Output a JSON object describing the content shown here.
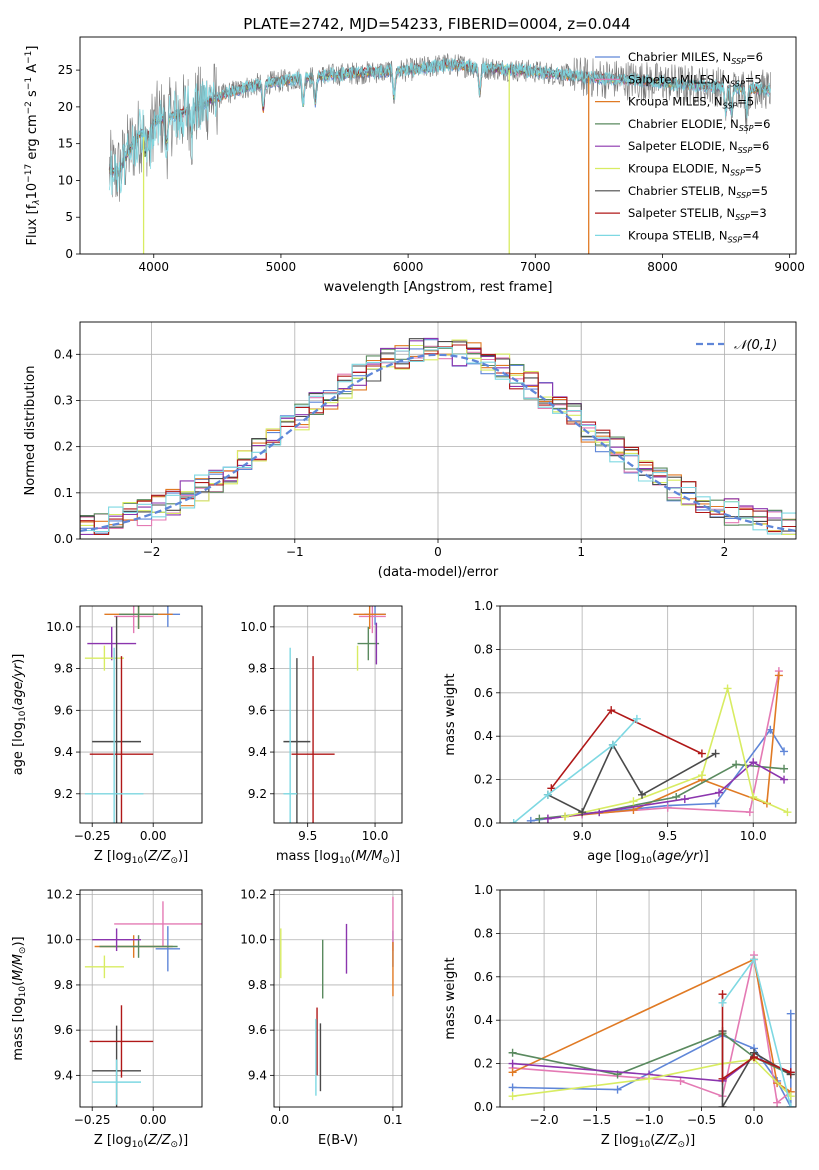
{
  "title": "PLATE=2742, MJD=54233, FIBERID=0004, z=0.044",
  "colors": {
    "Chabrier MILES": "#5f86d8",
    "Salpeter MILES": "#e47ab4",
    "Kroupa MILES": "#e07a24",
    "Chabrier ELODIE": "#5a8a5f",
    "Salpeter ELODIE": "#8b35ae",
    "Kroupa ELODIE": "#d8ec62",
    "Chabrier STELIB": "#4a4a4a",
    "Salpeter STELIB": "#b01818",
    "Kroupa STELIB": "#7ed8e2",
    "normal": "#5f86d8"
  },
  "legend_models": [
    {
      "model": "Chabrier MILES",
      "nssp": "6"
    },
    {
      "model": "Salpeter MILES",
      "nssp": "5"
    },
    {
      "model": "Kroupa MILES",
      "nssp": "5"
    },
    {
      "model": "Chabrier ELODIE",
      "nssp": "6"
    },
    {
      "model": "Salpeter ELODIE",
      "nssp": "6"
    },
    {
      "model": "Kroupa ELODIE",
      "nssp": "5"
    },
    {
      "model": "Chabrier STELIB",
      "nssp": "5"
    },
    {
      "model": "Salpeter STELIB",
      "nssp": "3"
    },
    {
      "model": "Kroupa STELIB",
      "nssp": "4"
    }
  ],
  "chart_data": [
    {
      "id": "spectrum",
      "type": "line",
      "xlabel": "wavelength [Angstrom, rest frame]",
      "ylabel": "Flux [f_λ10^-17 erg cm^-2 s^-1 A^-1]",
      "xlim": [
        3420,
        9050
      ],
      "ylim": [
        0,
        29.5
      ],
      "xticks": [
        4000,
        5000,
        6000,
        7000,
        8000,
        9000
      ],
      "yticks": [
        0,
        5,
        10,
        15,
        20,
        25
      ],
      "x_range": [
        3650,
        8850
      ],
      "continuum": [
        [
          3650,
          11.5
        ],
        [
          3720,
          11
        ],
        [
          3800,
          14
        ],
        [
          3900,
          16.5
        ],
        [
          4000,
          18
        ],
        [
          4200,
          19
        ],
        [
          4400,
          20.5
        ],
        [
          4600,
          22
        ],
        [
          4800,
          23
        ],
        [
          5000,
          23.5
        ],
        [
          5200,
          24
        ],
        [
          5500,
          24.5
        ],
        [
          6000,
          25
        ],
        [
          6300,
          25.8
        ],
        [
          6600,
          25.3
        ],
        [
          7000,
          24.8
        ],
        [
          7400,
          24
        ],
        [
          7800,
          23.6
        ],
        [
          8200,
          23
        ],
        [
          8600,
          22.6
        ],
        [
          8850,
          22.3
        ]
      ],
      "absorption_lines": [
        3934,
        3969,
        4101,
        4300,
        4861,
        5175,
        5270,
        5890,
        6563,
        8498,
        8542,
        8662
      ],
      "spikes": [
        {
          "x": 3920,
          "model": "Kroupa ELODIE"
        },
        {
          "x": 6795,
          "model": "Kroupa ELODIE"
        },
        {
          "x": 7420,
          "model": "Kroupa MILES"
        }
      ]
    },
    {
      "id": "residuals",
      "type": "histogram",
      "xlabel": "(data-model)/error",
      "ylabel": "Normed distribution",
      "xlim": [
        -2.5,
        2.5
      ],
      "ylim": [
        0,
        0.47
      ],
      "xticks": [
        -2,
        -1,
        0,
        1,
        2
      ],
      "yticks": [
        0,
        0.1,
        0.2,
        0.3,
        0.4
      ],
      "bins": 50,
      "legend": "𝒩(0,1)"
    },
    {
      "id": "age-vs-Z",
      "type": "errorbar",
      "xlabel": "Z [log10(Z/Z⊙)]",
      "ylabel": "age [log10(age/yr)]",
      "xlim": [
        -0.3,
        0.2
      ],
      "ylim": [
        9.06,
        10.1
      ],
      "xticks": [
        -0.25,
        0.0
      ],
      "yticks": [
        9.2,
        9.4,
        9.6,
        9.8,
        10.0
      ],
      "points": [
        {
          "model": "Chabrier MILES",
          "x": 0.06,
          "xerr": 0.05,
          "y": 10.06,
          "yerr": 0.06
        },
        {
          "model": "Salpeter MILES",
          "x": -0.08,
          "xerr": 0.08,
          "y": 10.05,
          "yerr": 0.08
        },
        {
          "model": "Kroupa MILES",
          "x": -0.06,
          "xerr": 0.14,
          "y": 10.06,
          "yerr": 0.07
        },
        {
          "model": "Chabrier ELODIE",
          "x": -0.06,
          "xerr": 0.08,
          "y": 10.06,
          "yerr": 0.07
        },
        {
          "model": "Salpeter ELODIE",
          "x": -0.17,
          "xerr": 0.1,
          "y": 9.92,
          "yerr": 0.08
        },
        {
          "model": "Kroupa ELODIE",
          "x": -0.2,
          "xerr": 0.08,
          "y": 9.85,
          "yerr": 0.06
        },
        {
          "model": "Chabrier STELIB",
          "x": -0.15,
          "xerr": 0.1,
          "y": 9.45,
          "yerr": 0.6
        },
        {
          "model": "Salpeter STELIB",
          "x": -0.13,
          "xerr": 0.13,
          "y": 9.39,
          "yerr": 0.47
        },
        {
          "model": "Kroupa STELIB",
          "x": -0.16,
          "xerr": 0.12,
          "y": 9.2,
          "yerr": 0.7
        }
      ]
    },
    {
      "id": "age-vs-mass",
      "type": "errorbar",
      "xlabel": "mass [log10(M/M⊙)]",
      "ylabel": "",
      "xlim": [
        9.25,
        10.2
      ],
      "ylim": [
        9.06,
        10.1
      ],
      "xticks": [
        9.5,
        10.0
      ],
      "yticks": [
        9.2,
        9.4,
        9.6,
        9.8,
        10.0
      ],
      "points": [
        {
          "model": "Chabrier MILES",
          "x": 10.0,
          "xerr": 0.08,
          "y": 10.06,
          "yerr": 0.05
        },
        {
          "model": "Salpeter MILES",
          "x": 9.98,
          "xerr": 0.1,
          "y": 10.05,
          "yerr": 0.08
        },
        {
          "model": "Kroupa MILES",
          "x": 9.96,
          "xerr": 0.12,
          "y": 10.06,
          "yerr": 0.07
        },
        {
          "model": "Chabrier ELODIE",
          "x": 9.95,
          "xerr": 0.08,
          "y": 9.92,
          "yerr": 0.08
        },
        {
          "model": "Salpeter ELODIE",
          "x": 10.01,
          "xerr": 0.0,
          "y": 9.92,
          "yerr": 0.1
        },
        {
          "model": "Kroupa ELODIE",
          "x": 9.87,
          "xerr": 0.0,
          "y": 9.85,
          "yerr": 0.06
        },
        {
          "model": "Chabrier STELIB",
          "x": 9.42,
          "xerr": 0.1,
          "y": 9.45,
          "yerr": 0.4
        },
        {
          "model": "Salpeter STELIB",
          "x": 9.54,
          "xerr": 0.16,
          "y": 9.39,
          "yerr": 0.47
        },
        {
          "model": "Kroupa STELIB",
          "x": 9.37,
          "xerr": 0.05,
          "y": 9.2,
          "yerr": 0.7
        }
      ]
    },
    {
      "id": "mass-weight-vs-age",
      "type": "line",
      "xlabel": "age [log10(age/yr)]",
      "ylabel": "mass weight",
      "xlim": [
        8.52,
        10.25
      ],
      "ylim": [
        0,
        1.0
      ],
      "xticks": [
        9.0,
        9.5,
        10.0
      ],
      "yticks": [
        0.0,
        0.2,
        0.4,
        0.6,
        0.8,
        1.0
      ],
      "series": [
        {
          "model": "Chabrier MILES",
          "x": [
            8.7,
            9.0,
            9.5,
            9.78,
            10.1,
            10.18
          ],
          "y": [
            0.01,
            0.04,
            0.08,
            0.09,
            0.43,
            0.33
          ]
        },
        {
          "model": "Salpeter MILES",
          "x": [
            8.8,
            9.0,
            9.5,
            9.98,
            10.15
          ],
          "y": [
            0.02,
            0.04,
            0.07,
            0.05,
            0.7
          ]
        },
        {
          "model": "Kroupa MILES",
          "x": [
            8.9,
            9.3,
            9.7,
            10.08,
            10.15
          ],
          "y": [
            0.03,
            0.06,
            0.2,
            0.09,
            0.68
          ]
        },
        {
          "model": "Chabrier ELODIE",
          "x": [
            8.75,
            9.1,
            9.55,
            9.9,
            10.18
          ],
          "y": [
            0.02,
            0.05,
            0.12,
            0.27,
            0.25
          ]
        },
        {
          "model": "Salpeter ELODIE",
          "x": [
            8.8,
            9.1,
            9.6,
            9.8,
            10.0,
            10.18
          ],
          "y": [
            0.02,
            0.05,
            0.11,
            0.14,
            0.28,
            0.2
          ]
        },
        {
          "model": "Kroupa ELODIE",
          "x": [
            8.9,
            9.3,
            9.7,
            9.85,
            10.0,
            10.2
          ],
          "y": [
            0.03,
            0.1,
            0.22,
            0.62,
            0.12,
            0.05
          ]
        },
        {
          "model": "Chabrier STELIB",
          "x": [
            8.8,
            9.0,
            9.18,
            9.35,
            9.78
          ],
          "y": [
            0.13,
            0.05,
            0.36,
            0.13,
            0.32
          ]
        },
        {
          "model": "Salpeter STELIB",
          "x": [
            8.82,
            9.17,
            9.7
          ],
          "y": [
            0.16,
            0.52,
            0.32
          ]
        },
        {
          "model": "Kroupa STELIB",
          "x": [
            8.6,
            8.8,
            9.18,
            9.32
          ],
          "y": [
            0.0,
            0.13,
            0.36,
            0.48
          ]
        }
      ]
    },
    {
      "id": "mass-vs-Z",
      "type": "errorbar",
      "xlabel": "Z [log10(Z/Z⊙)]",
      "ylabel": "mass [log10(M/M⊙)]",
      "xlim": [
        -0.3,
        0.2
      ],
      "ylim": [
        9.26,
        10.22
      ],
      "xticks": [
        -0.25,
        0.0
      ],
      "yticks": [
        9.4,
        9.6,
        9.8,
        10.0,
        10.2
      ],
      "points": [
        {
          "model": "Chabrier MILES",
          "x": 0.06,
          "xerr": 0.05,
          "y": 9.96,
          "yerr": 0.1
        },
        {
          "model": "Salpeter MILES",
          "x": 0.04,
          "xerr": 0.2,
          "y": 10.07,
          "yerr": 0.1
        },
        {
          "model": "Kroupa MILES",
          "x": -0.08,
          "xerr": 0.16,
          "y": 9.97,
          "yerr": 0.05
        },
        {
          "model": "Chabrier ELODIE",
          "x": -0.06,
          "xerr": 0.16,
          "y": 9.97,
          "yerr": 0.05
        },
        {
          "model": "Salpeter ELODIE",
          "x": -0.15,
          "xerr": 0.1,
          "y": 10.0,
          "yerr": 0.05
        },
        {
          "model": "Kroupa ELODIE",
          "x": -0.2,
          "xerr": 0.08,
          "y": 9.88,
          "yerr": 0.05
        },
        {
          "model": "Chabrier STELIB",
          "x": -0.15,
          "xerr": 0.1,
          "y": 9.42,
          "yerr": 0.2
        },
        {
          "model": "Salpeter STELIB",
          "x": -0.13,
          "xerr": 0.13,
          "y": 9.55,
          "yerr": 0.16
        },
        {
          "model": "Kroupa STELIB",
          "x": -0.15,
          "xerr": 0.1,
          "y": 9.37,
          "yerr": 0.1
        }
      ]
    },
    {
      "id": "mass-vs-EBV",
      "type": "errorbar",
      "xlabel": "E(B-V)",
      "ylabel": "",
      "xlim": [
        -0.005,
        0.108
      ],
      "ylim": [
        9.26,
        10.22
      ],
      "xticks": [
        0.0,
        0.1
      ],
      "yticks": [
        9.4,
        9.6,
        9.8,
        10.0,
        10.2
      ],
      "points": [
        {
          "model": "Chabrier MILES",
          "x": 0.1,
          "xerr": 0.0,
          "y": 9.96,
          "yerr": 0.08
        },
        {
          "model": "Salpeter MILES",
          "x": 0.1,
          "xerr": 0.0,
          "y": 10.07,
          "yerr": 0.12
        },
        {
          "model": "Kroupa MILES",
          "x": 0.1,
          "xerr": 0.0,
          "y": 9.87,
          "yerr": 0.12
        },
        {
          "model": "Chabrier ELODIE",
          "x": 0.038,
          "xerr": 0.0,
          "y": 9.87,
          "yerr": 0.13
        },
        {
          "model": "Salpeter ELODIE",
          "x": 0.059,
          "xerr": 0.0,
          "y": 9.96,
          "yerr": 0.11
        },
        {
          "model": "Kroupa ELODIE",
          "x": 0.001,
          "xerr": 0.0,
          "y": 9.94,
          "yerr": 0.11
        },
        {
          "model": "Chabrier STELIB",
          "x": 0.036,
          "xerr": 0.0,
          "y": 9.48,
          "yerr": 0.15
        },
        {
          "model": "Salpeter STELIB",
          "x": 0.033,
          "xerr": 0.0,
          "y": 9.55,
          "yerr": 0.15
        },
        {
          "model": "Kroupa STELIB",
          "x": 0.032,
          "xerr": 0.0,
          "y": 9.48,
          "yerr": 0.17
        }
      ]
    },
    {
      "id": "mass-weight-vs-Z",
      "type": "line",
      "xlabel": "Z [log10(Z/Z⊙)]",
      "ylabel": "mass weight",
      "xlim": [
        -2.42,
        0.4
      ],
      "ylim": [
        0,
        1.0
      ],
      "xticks": [
        -2.0,
        -1.5,
        -1.0,
        -0.5,
        0.0
      ],
      "yticks": [
        0.0,
        0.2,
        0.4,
        0.6,
        0.8,
        1.0
      ],
      "series": [
        {
          "model": "Chabrier MILES",
          "x": [
            -2.3,
            -1.3,
            -0.3,
            0.0,
            0.22,
            0.35,
            0.35
          ],
          "y": [
            0.09,
            0.08,
            0.33,
            0.27,
            0.12,
            0.0,
            0.43
          ]
        },
        {
          "model": "Salpeter MILES",
          "x": [
            -2.3,
            -0.7,
            -0.3,
            0.0,
            0.22,
            0.35
          ],
          "y": [
            0.18,
            0.12,
            0.05,
            0.7,
            0.02,
            0.07
          ]
        },
        {
          "model": "Kroupa MILES",
          "x": [
            -2.3,
            0.0,
            0.22,
            0.35
          ],
          "y": [
            0.16,
            0.68,
            0.11,
            0.07
          ]
        },
        {
          "model": "Chabrier ELODIE",
          "x": [
            -2.3,
            -1.3,
            -0.3,
            0.0,
            0.35
          ],
          "y": [
            0.25,
            0.15,
            0.34,
            0.23,
            0.15
          ]
        },
        {
          "model": "Salpeter ELODIE",
          "x": [
            -2.3,
            -1.0,
            -0.3,
            0.0,
            0.35
          ],
          "y": [
            0.2,
            0.15,
            0.12,
            0.23,
            0.16
          ]
        },
        {
          "model": "Kroupa ELODIE",
          "x": [
            -2.3,
            -1.0,
            -0.3,
            0.0,
            0.35
          ],
          "y": [
            0.05,
            0.13,
            0.2,
            0.22,
            0.05
          ]
        },
        {
          "model": "Chabrier STELIB",
          "x": [
            -0.3,
            -0.3,
            0.0,
            0.35
          ],
          "y": [
            0.35,
            0.0,
            0.25,
            0.15
          ]
        },
        {
          "model": "Salpeter STELIB",
          "x": [
            -0.3,
            -0.3,
            0.0,
            0.35
          ],
          "y": [
            0.52,
            0.13,
            0.23,
            0.16
          ]
        },
        {
          "model": "Kroupa STELIB",
          "x": [
            -0.3,
            0.0,
            0.35
          ],
          "y": [
            0.48,
            0.68,
            0.0
          ]
        }
      ]
    }
  ]
}
